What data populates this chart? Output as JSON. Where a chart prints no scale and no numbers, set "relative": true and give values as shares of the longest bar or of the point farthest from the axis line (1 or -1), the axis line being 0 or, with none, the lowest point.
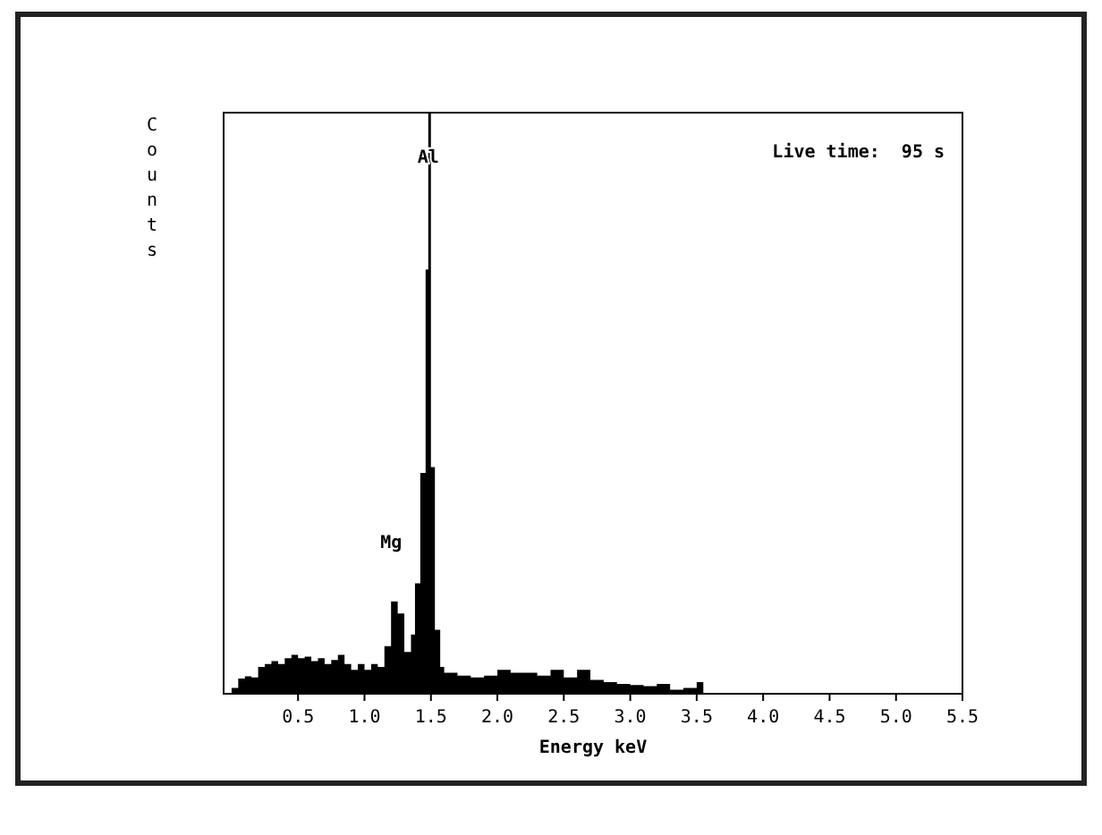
{
  "chart_data": {
    "type": "area",
    "relative": true,
    "xlabel": "Energy keV",
    "ylabel": "Counts",
    "xlim": [
      -0.06,
      5.5
    ],
    "xticks": [
      {
        "value": 0.5,
        "label": "0.5"
      },
      {
        "value": 1,
        "label": "1.0"
      },
      {
        "value": 1.5,
        "label": "1.5"
      },
      {
        "value": 2,
        "label": "2.0"
      },
      {
        "value": 2.5,
        "label": "2.5"
      },
      {
        "value": 3,
        "label": "3.0"
      },
      {
        "value": 3.5,
        "label": "3.5"
      },
      {
        "value": 4,
        "label": "4.0"
      },
      {
        "value": 4.5,
        "label": "4.5"
      },
      {
        "value": 5,
        "label": "5.0"
      },
      {
        "value": 5.5,
        "label": "5.5"
      }
    ],
    "x": [
      0,
      0.05,
      0.1,
      0.15,
      0.2,
      0.25,
      0.3,
      0.35,
      0.4,
      0.45,
      0.5,
      0.55,
      0.6,
      0.65,
      0.7,
      0.75,
      0.8,
      0.85,
      0.9,
      0.95,
      1.0,
      1.05,
      1.1,
      1.15,
      1.2,
      1.25,
      1.3,
      1.35,
      1.38,
      1.42,
      1.46,
      1.48,
      1.5,
      1.53,
      1.57,
      1.6,
      1.7,
      1.8,
      1.9,
      2.0,
      2.1,
      2.2,
      2.3,
      2.4,
      2.5,
      2.6,
      2.7,
      2.8,
      2.9,
      3.0,
      3.1,
      3.2,
      3.3,
      3.4,
      3.5,
      3.55,
      5.5
    ],
    "series": [
      {
        "color": "#000000",
        "values": [
          0.01,
          0.026,
          0.03,
          0.028,
          0.046,
          0.051,
          0.056,
          0.051,
          0.061,
          0.067,
          0.061,
          0.064,
          0.056,
          0.061,
          0.051,
          0.058,
          0.067,
          0.051,
          0.041,
          0.051,
          0.041,
          0.051,
          0.046,
          0.082,
          0.159,
          0.138,
          0.072,
          0.102,
          0.19,
          0.38,
          0.73,
          1,
          0.39,
          0.11,
          0.046,
          0.036,
          0.031,
          0.028,
          0.031,
          0.041,
          0.036,
          0.036,
          0.031,
          0.041,
          0.028,
          0.041,
          0.024,
          0.02,
          0.017,
          0.015,
          0.013,
          0.017,
          0.007,
          0.01,
          0.02,
          0,
          0
        ]
      }
    ],
    "annotations": [
      "Live time:  95 s",
      {
        "text": "Al",
        "x": 1.48,
        "y": 1
      },
      {
        "text": "Mg",
        "x": 1.2,
        "y": 0.159
      }
    ]
  }
}
